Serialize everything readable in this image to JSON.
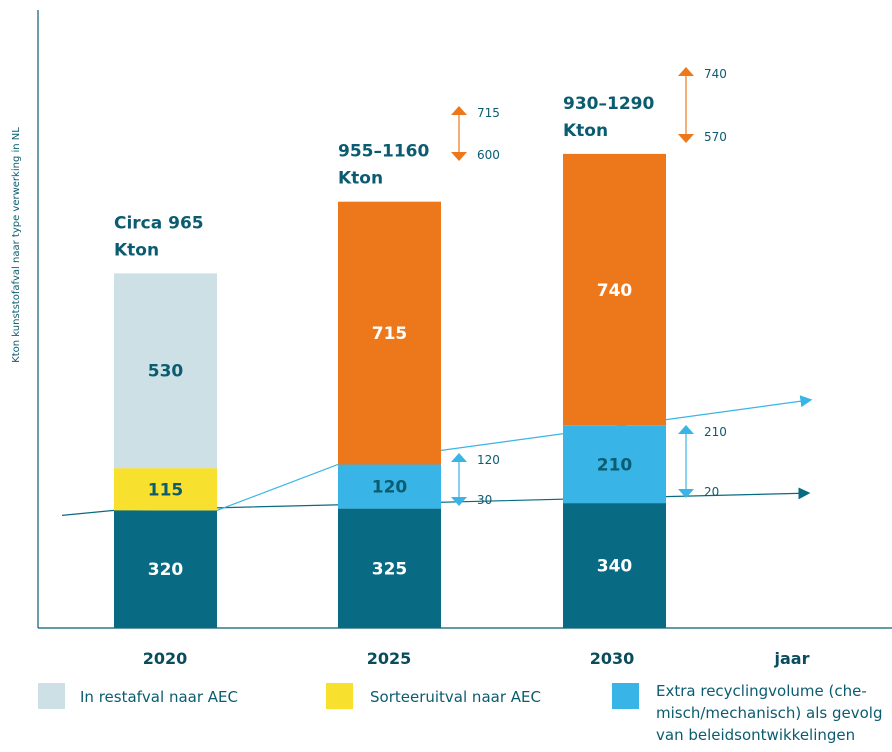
{
  "chart_data": {
    "type": "bar",
    "stacked": true,
    "ylabel": "Kton kunststofafval naar type verwerking in NL",
    "xlabel": "jaar",
    "categories": [
      "2020",
      "2025",
      "2030"
    ],
    "totals": [
      [
        "Circa 965",
        "Kton"
      ],
      [
        "955–1160",
        "Kton"
      ],
      [
        "930–1290",
        "Kton"
      ]
    ],
    "series": [
      {
        "color": "#086a83",
        "values": [
          320,
          325,
          340
        ]
      },
      {
        "color": "#f8e12e",
        "values": [
          115,
          null,
          null
        ]
      },
      {
        "color": "#cde0e6",
        "values": [
          530,
          null,
          null
        ]
      },
      {
        "color": "#38b5e6",
        "values": [
          null,
          120,
          210
        ]
      },
      {
        "color": "#ec781b",
        "values": [
          null,
          715,
          740
        ]
      }
    ],
    "ranges": [
      {
        "category": "2025",
        "color": "#ec781b",
        "high": "715",
        "low": "600"
      },
      {
        "category": "2030",
        "color": "#ec781b",
        "high": "740",
        "low": "570"
      },
      {
        "category": "2025",
        "color": "#38b5e6",
        "high": "120",
        "low": "30"
      },
      {
        "category": "2030",
        "color": "#38b5e6",
        "high": "210",
        "low": "20"
      }
    ],
    "trend_lines": [
      {
        "color": "#086a83",
        "shows": "trend of the lowest segment"
      },
      {
        "color": "#38b5e6",
        "shows": "trend of upper boundary of recycling segments"
      }
    ],
    "legend": [
      {
        "label": "In restafval naar AEC",
        "color": "#cde0e6"
      },
      {
        "label": "Sorteeruitval naar AEC",
        "color": "#f8e12e"
      },
      {
        "label": "Extra recyclingvolume (che-misch/mechanisch) als gevolg van beleidsontwikkelingen",
        "lines": [
          "Extra recyclingvolume (che-",
          "misch/mechanisch) als gevolg",
          "van beleidsontwikkelingen"
        ],
        "color": "#38b5e6"
      }
    ]
  }
}
